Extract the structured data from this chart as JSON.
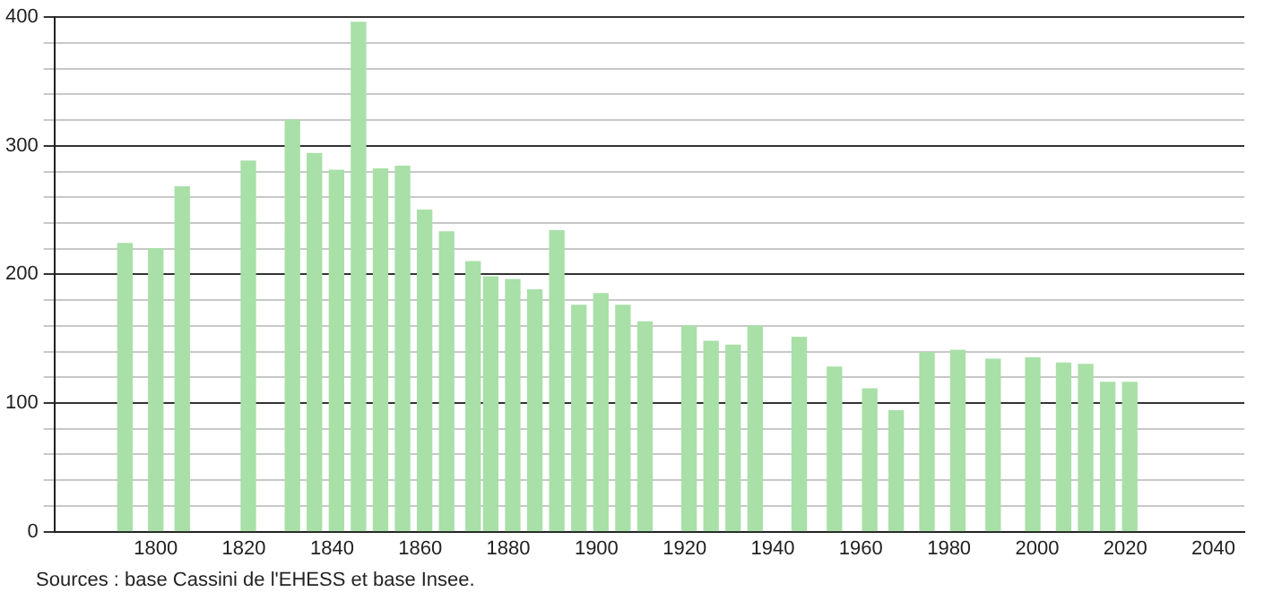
{
  "chart_data": {
    "type": "bar",
    "color": "#a8e0a8",
    "x": [
      1793,
      1800,
      1806,
      1821,
      1831,
      1836,
      1841,
      1846,
      1851,
      1856,
      1861,
      1866,
      1872,
      1876,
      1881,
      1886,
      1891,
      1896,
      1901,
      1906,
      1911,
      1921,
      1926,
      1931,
      1936,
      1946,
      1954,
      1962,
      1968,
      1975,
      1982,
      1990,
      1999,
      2006,
      2011,
      2016,
      2021
    ],
    "values": [
      224,
      220,
      268,
      288,
      320,
      294,
      281,
      396,
      282,
      284,
      250,
      233,
      210,
      198,
      196,
      188,
      234,
      176,
      185,
      176,
      163,
      160,
      148,
      145,
      160,
      151,
      128,
      111,
      94,
      139,
      141,
      134,
      135,
      131,
      130,
      116,
      116
    ],
    "xlim": [
      1777,
      2047
    ],
    "xticks": [
      1800,
      1820,
      1840,
      1860,
      1880,
      1900,
      1920,
      1940,
      1960,
      1980,
      2000,
      2020,
      2040
    ],
    "ylim": [
      0,
      400
    ],
    "yticks": [
      0,
      {
        "value": 20,
        "label": null
      },
      {
        "value": 40,
        "label": null
      },
      {
        "value": 60,
        "label": null
      },
      {
        "value": 80,
        "label": null
      },
      100,
      {
        "value": 120,
        "label": null
      },
      {
        "value": 140,
        "label": null
      },
      {
        "value": 160,
        "label": null
      },
      {
        "value": 180,
        "label": null
      },
      200,
      {
        "value": 220,
        "label": null
      },
      {
        "value": 240,
        "label": null
      },
      {
        "value": 260,
        "label": null
      },
      {
        "value": 280,
        "label": null
      },
      300,
      {
        "value": 320,
        "label": null
      },
      {
        "value": 340,
        "label": null
      },
      {
        "value": 360,
        "label": null
      },
      {
        "value": 380,
        "label": null
      },
      400
    ],
    "grid": "y",
    "annotations": [
      "Sources : base Cassini de l'EHESS et base Insee."
    ]
  }
}
